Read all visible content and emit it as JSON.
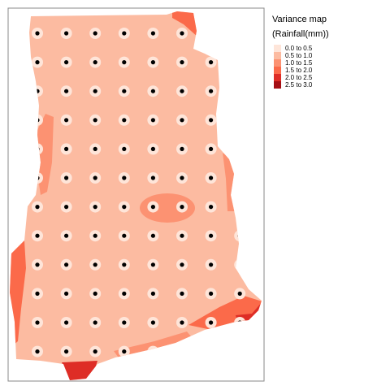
{
  "legend": {
    "title": "Variance map",
    "subtitle": "(Rainfall(mm))",
    "classes": [
      {
        "label": "0.0 to 0.5",
        "color": "#fee5d9"
      },
      {
        "label": "0.5 to 1.0",
        "color": "#fcbba1"
      },
      {
        "label": "1.0 to 1.5",
        "color": "#fc9272"
      },
      {
        "label": "1.5 to 2.0",
        "color": "#fb6a4a"
      },
      {
        "label": "2.0 to 2.5",
        "color": "#de2d26"
      },
      {
        "label": "2.5 to 3.0",
        "color": "#a50f15"
      }
    ]
  },
  "map": {
    "station_marker_color": "#000000",
    "station_halo_color": "#fee5d9",
    "frame_color": "#888888"
  }
}
